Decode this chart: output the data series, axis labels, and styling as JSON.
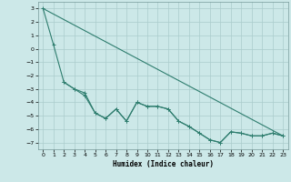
{
  "xlabel": "Humidex (Indice chaleur)",
  "background_color": "#cce8e8",
  "grid_color": "#aacccc",
  "line_color": "#2e7d6e",
  "xlim": [
    -0.5,
    23.5
  ],
  "ylim": [
    -7.5,
    3.5
  ],
  "yticks": [
    3,
    2,
    1,
    0,
    -1,
    -2,
    -3,
    -4,
    -5,
    -6,
    -7
  ],
  "xticks": [
    0,
    1,
    2,
    3,
    4,
    5,
    6,
    7,
    8,
    9,
    10,
    11,
    12,
    13,
    14,
    15,
    16,
    17,
    18,
    19,
    20,
    21,
    22,
    23
  ],
  "line1_x": [
    0,
    1,
    2,
    3,
    4,
    5,
    6,
    7,
    8,
    9,
    10,
    11,
    12,
    13,
    14,
    15,
    16,
    17,
    18,
    19,
    20,
    21,
    22,
    23
  ],
  "line1_y": [
    3.0,
    0.3,
    -2.5,
    -3.0,
    -3.5,
    -4.8,
    -5.2,
    -4.5,
    -5.4,
    -4.0,
    -4.3,
    -4.3,
    -4.5,
    -5.4,
    -5.8,
    -6.3,
    -6.8,
    -7.0,
    -6.2,
    -6.3,
    -6.5,
    -6.5,
    -6.3,
    -6.5
  ],
  "line2_x": [
    0,
    23
  ],
  "line2_y": [
    3.0,
    -6.5
  ],
  "line3_x": [
    2,
    3,
    4,
    5,
    6,
    7,
    8,
    9,
    10,
    11,
    12,
    13,
    14,
    15,
    16,
    17,
    18,
    19,
    20,
    21,
    22,
    23
  ],
  "line3_y": [
    -2.5,
    -3.0,
    -3.3,
    -4.8,
    -5.2,
    -4.5,
    -5.4,
    -4.0,
    -4.3,
    -4.3,
    -4.5,
    -5.4,
    -5.8,
    -6.3,
    -6.8,
    -7.0,
    -6.2,
    -6.3,
    -6.5,
    -6.5,
    -6.3,
    -6.5
  ]
}
